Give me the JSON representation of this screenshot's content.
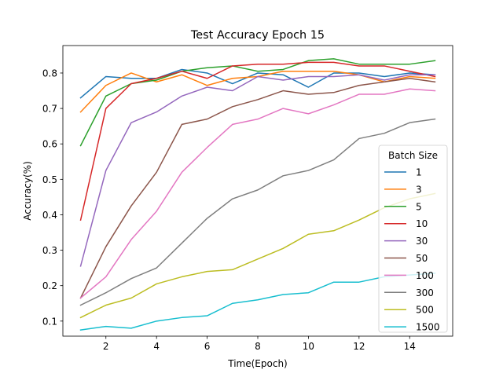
{
  "chart_data": {
    "type": "line",
    "title": "Test Accuracy Epoch 15",
    "xlabel": "Time(Epoch)",
    "ylabel": "Accuracy(%)",
    "xlim": [
      0.3,
      15.7
    ],
    "ylim": [
      0.0575,
      0.8775
    ],
    "xticks": [
      2,
      4,
      6,
      8,
      10,
      12,
      14
    ],
    "xtick_labels": [
      "2",
      "4",
      "6",
      "8",
      "10",
      "12",
      "14"
    ],
    "yticks": [
      0.1,
      0.2,
      0.3,
      0.4,
      0.5,
      0.6,
      0.7,
      0.8
    ],
    "ytick_labels": [
      "0.1",
      "0.2",
      "0.3",
      "0.4",
      "0.5",
      "0.6",
      "0.7",
      "0.8"
    ],
    "grid": false,
    "legend_title": "Batch Size",
    "legend_position": "center right",
    "x": [
      1,
      2,
      3,
      4,
      5,
      6,
      7,
      8,
      9,
      10,
      11,
      12,
      13,
      14,
      15
    ],
    "series": [
      {
        "name": "1",
        "color": "#1f77b4",
        "values": [
          0.73,
          0.79,
          0.785,
          0.785,
          0.81,
          0.8,
          0.77,
          0.8,
          0.795,
          0.76,
          0.8,
          0.8,
          0.79,
          0.8,
          0.795
        ]
      },
      {
        "name": "3",
        "color": "#ff7f0e",
        "values": [
          0.69,
          0.765,
          0.8,
          0.775,
          0.795,
          0.765,
          0.785,
          0.79,
          0.805,
          0.805,
          0.805,
          0.795,
          0.775,
          0.79,
          0.785
        ]
      },
      {
        "name": "5",
        "color": "#2ca02c",
        "values": [
          0.595,
          0.735,
          0.77,
          0.78,
          0.805,
          0.815,
          0.82,
          0.805,
          0.81,
          0.835,
          0.84,
          0.825,
          0.825,
          0.825,
          0.835
        ]
      },
      {
        "name": "10",
        "color": "#d62728",
        "values": [
          0.385,
          0.7,
          0.77,
          0.785,
          0.805,
          0.785,
          0.82,
          0.825,
          0.825,
          0.83,
          0.83,
          0.82,
          0.82,
          0.805,
          0.79
        ]
      },
      {
        "name": "30",
        "color": "#9467bd",
        "values": [
          0.255,
          0.525,
          0.66,
          0.69,
          0.735,
          0.76,
          0.75,
          0.79,
          0.78,
          0.79,
          0.79,
          0.795,
          0.78,
          0.795,
          0.795
        ]
      },
      {
        "name": "50",
        "color": "#8c564b",
        "values": [
          0.165,
          0.31,
          0.425,
          0.52,
          0.655,
          0.67,
          0.705,
          0.725,
          0.75,
          0.74,
          0.745,
          0.765,
          0.775,
          0.785,
          0.775
        ]
      },
      {
        "name": "100",
        "color": "#e377c2",
        "values": [
          0.165,
          0.225,
          0.33,
          0.41,
          0.52,
          0.59,
          0.655,
          0.67,
          0.7,
          0.685,
          0.71,
          0.74,
          0.74,
          0.755,
          0.75
        ]
      },
      {
        "name": "300",
        "color": "#7f7f7f",
        "values": [
          0.145,
          0.18,
          0.22,
          0.25,
          0.32,
          0.39,
          0.445,
          0.47,
          0.51,
          0.525,
          0.555,
          0.615,
          0.63,
          0.66,
          0.67
        ]
      },
      {
        "name": "500",
        "color": "#bcbd22",
        "values": [
          0.11,
          0.145,
          0.165,
          0.205,
          0.225,
          0.24,
          0.245,
          0.275,
          0.305,
          0.345,
          0.355,
          0.385,
          0.42,
          0.445,
          0.46
        ]
      },
      {
        "name": "1500",
        "color": "#17becf",
        "values": [
          0.075,
          0.085,
          0.08,
          0.1,
          0.11,
          0.115,
          0.15,
          0.16,
          0.175,
          0.18,
          0.21,
          0.21,
          0.225,
          0.23,
          0.235
        ]
      }
    ]
  }
}
